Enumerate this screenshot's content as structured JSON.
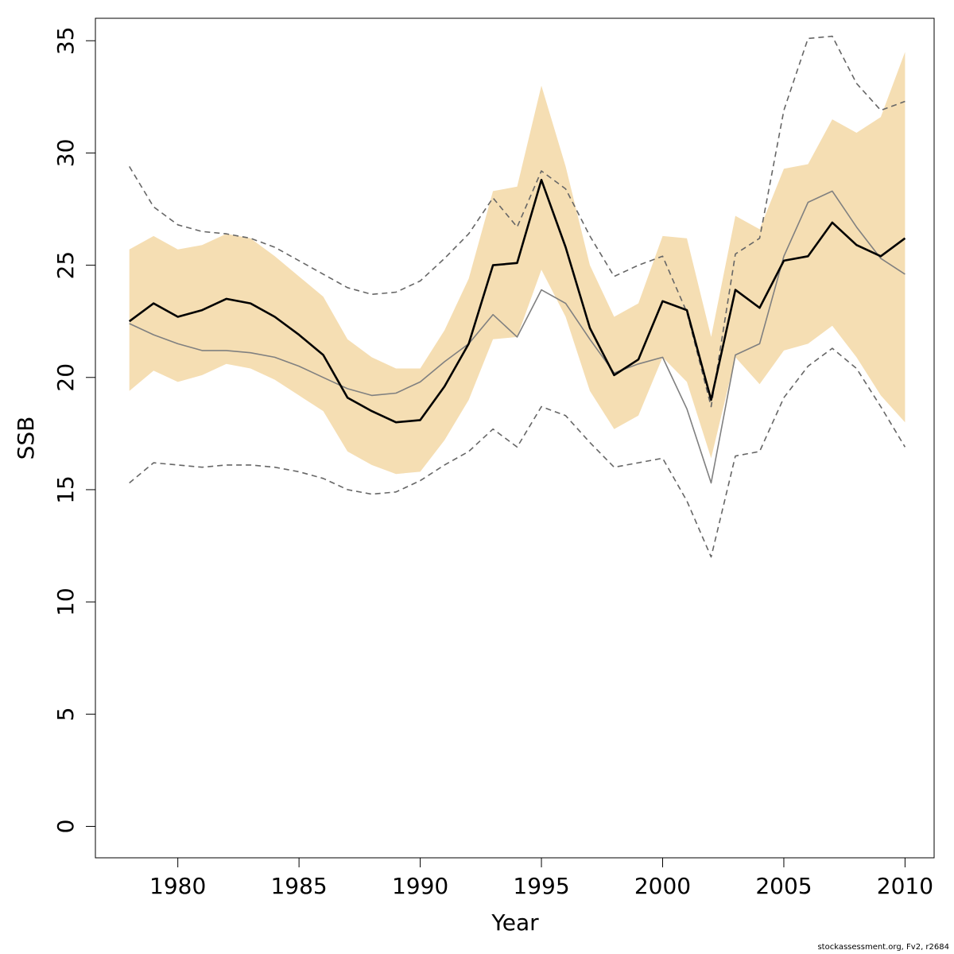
{
  "chart_data": {
    "type": "line",
    "xlabel": "Year",
    "ylabel": "SSB",
    "xlim": [
      1976.6,
      2011.2
    ],
    "ylim": [
      -1.4,
      36.0
    ],
    "x_ticks": [
      1980,
      1985,
      1990,
      1995,
      2000,
      2005,
      2010
    ],
    "y_ticks": [
      0,
      5,
      10,
      15,
      20,
      25,
      30,
      35
    ],
    "grid": false,
    "legend": "none",
    "years": [
      1978,
      1979,
      1980,
      1981,
      1982,
      1983,
      1984,
      1985,
      1986,
      1987,
      1988,
      1989,
      1990,
      1991,
      1992,
      1993,
      1994,
      1995,
      1996,
      1997,
      1998,
      1999,
      2000,
      2001,
      2002,
      2003,
      2004,
      2005,
      2006,
      2007,
      2008,
      2009,
      2010
    ],
    "band": {
      "color": "#f5deb3",
      "lower": [
        19.4,
        20.3,
        19.8,
        20.1,
        20.6,
        20.4,
        19.9,
        19.2,
        18.5,
        16.7,
        16.1,
        15.7,
        15.8,
        17.2,
        19.0,
        21.7,
        21.8,
        24.8,
        22.7,
        19.4,
        17.7,
        18.3,
        20.9,
        19.8,
        16.4,
        20.9,
        19.7,
        21.2,
        21.5,
        22.3,
        20.9,
        19.2,
        18.0
      ],
      "upper": [
        25.7,
        26.3,
        25.7,
        25.9,
        26.4,
        26.2,
        25.4,
        24.5,
        23.6,
        21.7,
        20.9,
        20.4,
        20.4,
        22.1,
        24.4,
        28.3,
        28.5,
        33.0,
        29.4,
        25.0,
        22.7,
        23.3,
        26.3,
        26.2,
        21.8,
        27.2,
        26.6,
        29.3,
        29.5,
        31.5,
        30.9,
        31.6,
        34.5
      ]
    },
    "series": [
      {
        "color": "#000000",
        "style": "solid",
        "values": [
          22.5,
          23.3,
          22.7,
          23.0,
          23.5,
          23.3,
          22.7,
          21.9,
          21.0,
          19.1,
          18.5,
          18.0,
          18.1,
          19.6,
          21.5,
          25.0,
          25.1,
          28.8,
          25.8,
          22.2,
          20.1,
          20.8,
          23.4,
          23.0,
          19.0,
          23.9,
          23.1,
          25.2,
          25.4,
          26.9,
          25.9,
          25.4,
          26.2
        ]
      },
      {
        "color": "#808080",
        "style": "solid",
        "values": [
          22.4,
          21.9,
          21.5,
          21.2,
          21.2,
          21.1,
          20.9,
          20.5,
          20.0,
          19.5,
          19.2,
          19.3,
          19.8,
          20.7,
          21.5,
          22.8,
          21.8,
          23.9,
          23.3,
          21.7,
          20.2,
          20.6,
          20.9,
          18.6,
          15.3,
          21.0,
          21.5,
          25.4,
          27.8,
          28.3,
          26.7,
          25.3,
          24.6
        ]
      },
      {
        "color": "#666666",
        "style": "dashed",
        "values": [
          29.4,
          27.6,
          26.8,
          26.5,
          26.4,
          26.2,
          25.8,
          25.2,
          24.6,
          24.0,
          23.7,
          23.8,
          24.3,
          25.3,
          26.4,
          28.0,
          26.7,
          29.2,
          28.4,
          26.3,
          24.5,
          25.0,
          25.4,
          22.9,
          18.7,
          25.5,
          26.2,
          31.9,
          35.1,
          35.2,
          33.1,
          31.9,
          32.3
        ]
      },
      {
        "color": "#666666",
        "style": "dashed",
        "values": [
          15.3,
          16.2,
          16.1,
          16.0,
          16.1,
          16.1,
          16.0,
          15.8,
          15.5,
          15.0,
          14.8,
          14.9,
          15.4,
          16.1,
          16.7,
          17.7,
          16.9,
          18.7,
          18.3,
          17.1,
          16.0,
          16.2,
          16.4,
          14.5,
          12.0,
          16.5,
          16.7,
          19.1,
          20.5,
          21.3,
          20.4,
          18.7,
          16.9
        ]
      }
    ]
  },
  "footer": {
    "credit": "stockassessment.org, Fv2, r2684"
  }
}
